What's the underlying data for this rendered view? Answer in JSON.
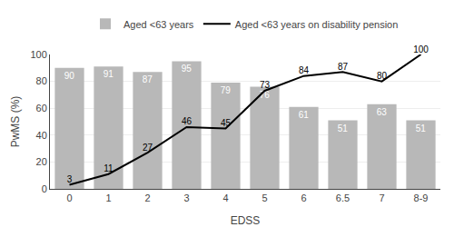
{
  "chart_data": {
    "type": "bar",
    "categories": [
      "0",
      "1",
      "2",
      "3",
      "4",
      "5",
      "6",
      "6.5",
      "7",
      "8-9"
    ],
    "series": [
      {
        "name": "Aged <63 years",
        "type": "bar",
        "color": "#b8b8b8",
        "values": [
          90,
          91,
          87,
          95,
          79,
          76,
          61,
          51,
          63,
          51
        ]
      },
      {
        "name": "Aged <63 years on disability pension",
        "type": "line",
        "color": "#000000",
        "values": [
          3,
          11,
          27,
          46,
          45,
          73,
          84,
          87,
          80,
          100
        ]
      }
    ],
    "xlabel": "EDSS",
    "ylabel": "PwMS (%)",
    "ylim": [
      0,
      100
    ],
    "yticks": [
      0,
      20,
      40,
      60,
      80,
      100
    ],
    "grid": true,
    "legend": "top",
    "data_labels": true
  }
}
